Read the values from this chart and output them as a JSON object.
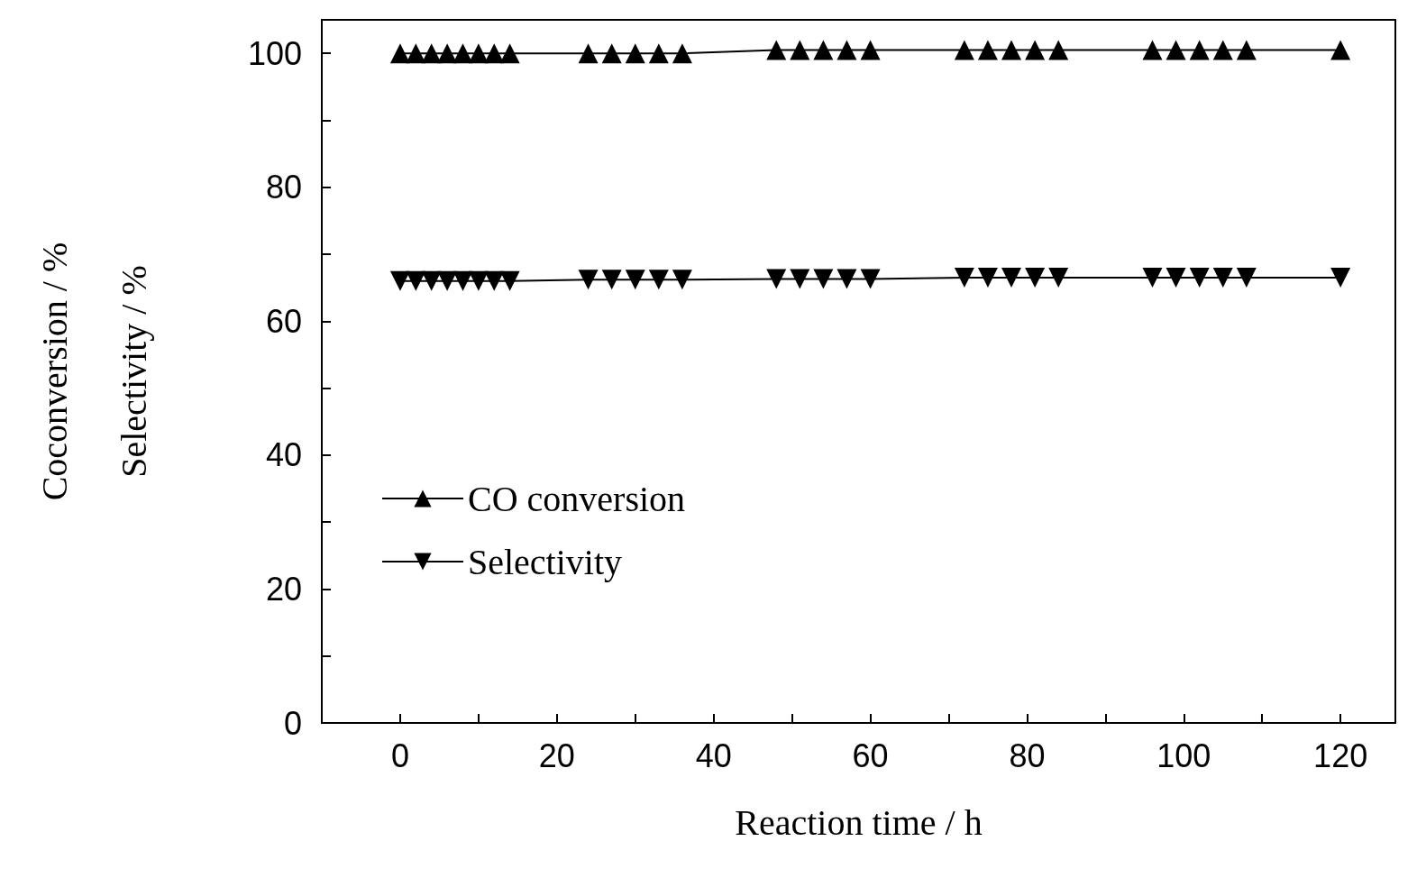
{
  "chart_data": {
    "type": "line",
    "xlabel": "Reaction time / h",
    "ylabel": "Coconversion / %\nSelectivity / %",
    "x": [
      0,
      2,
      4,
      6,
      8,
      10,
      12,
      14,
      24,
      27,
      30,
      33,
      36,
      48,
      51,
      54,
      57,
      60,
      72,
      75,
      78,
      81,
      84,
      96,
      99,
      102,
      105,
      108,
      120
    ],
    "series": [
      {
        "name": "CO conversion",
        "color": "#000000",
        "marker": "triangle",
        "values": [
          100,
          100,
          100,
          100,
          100,
          100,
          100,
          100,
          100,
          100,
          100,
          100,
          100,
          100.5,
          100.5,
          100.5,
          100.5,
          100.5,
          100.5,
          100.5,
          100.5,
          100.5,
          100.5,
          100.5,
          100.5,
          100.5,
          100.5,
          100.5,
          100.5
        ]
      },
      {
        "name": "Selectivity",
        "color": "#000000",
        "marker": "triangle-down",
        "values": [
          66,
          66,
          66,
          66,
          66,
          66,
          66,
          66,
          66.2,
          66.2,
          66.2,
          66.2,
          66.2,
          66.3,
          66.3,
          66.3,
          66.3,
          66.3,
          66.5,
          66.5,
          66.5,
          66.5,
          66.5,
          66.5,
          66.5,
          66.5,
          66.5,
          66.5,
          66.5
        ]
      }
    ],
    "xlim": [
      -10,
      127
    ],
    "xticks": [
      0,
      {
        "value": 10,
        "label": null
      },
      20,
      {
        "value": 30,
        "label": null
      },
      40,
      {
        "value": 50,
        "label": null
      },
      60,
      {
        "value": 70,
        "label": null
      },
      80,
      {
        "value": 90,
        "label": null
      },
      100,
      {
        "value": 110,
        "label": null
      },
      120
    ],
    "ylim": [
      0,
      105
    ],
    "yticks": [
      0,
      {
        "value": 10,
        "label": null
      },
      20,
      {
        "value": 30,
        "label": null
      },
      40,
      {
        "value": 50,
        "label": null
      },
      60,
      {
        "value": 70,
        "label": null
      },
      80,
      {
        "value": 90,
        "label": null
      },
      100
    ],
    "grid": false,
    "legend": "left",
    "line_style": "solid"
  }
}
